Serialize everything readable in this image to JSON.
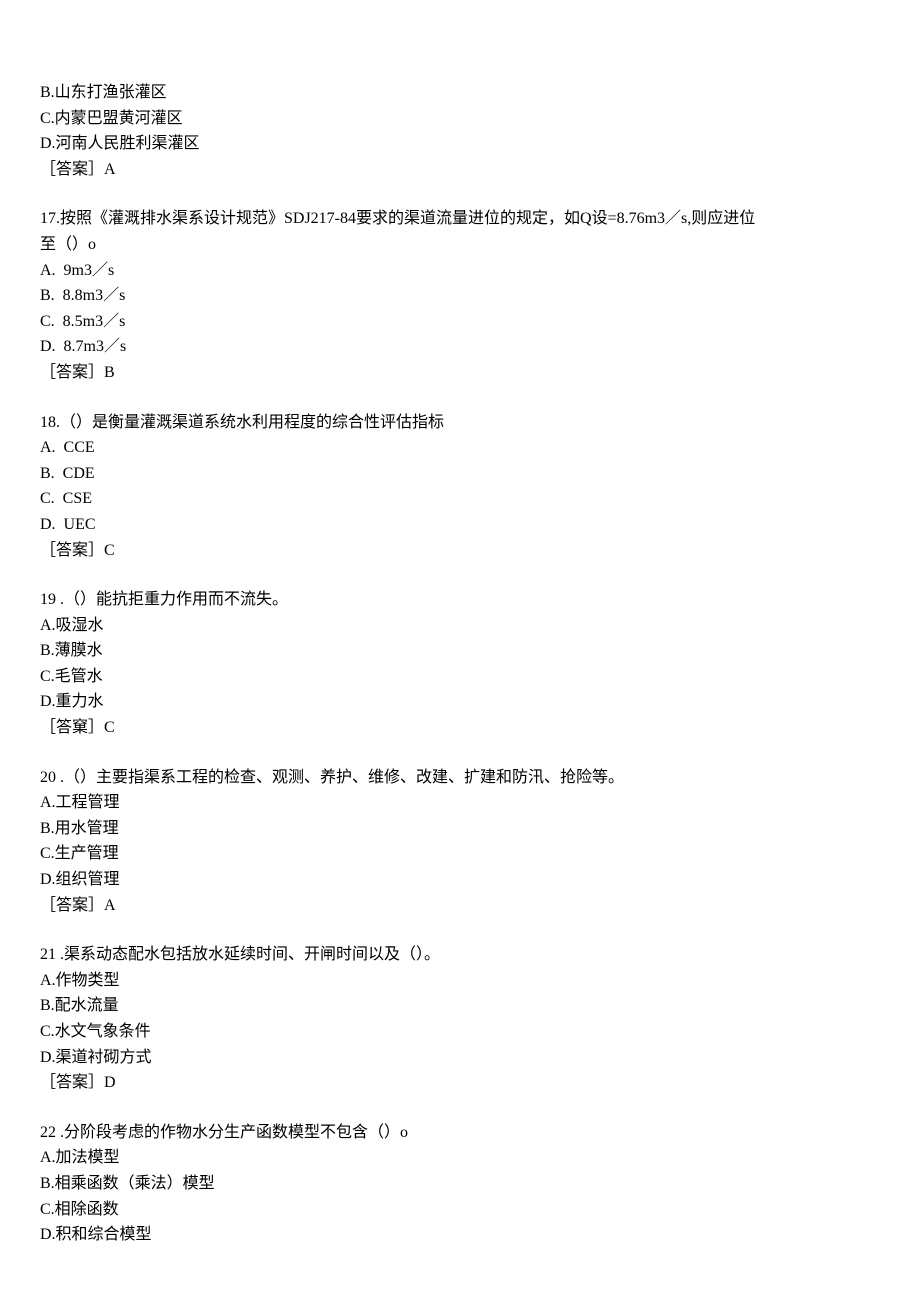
{
  "page": {
    "background_color": "#ffffff",
    "text_color": "#000000",
    "font_family": "SimSun",
    "font_size": 16,
    "line_height": 1.6
  },
  "q16_partial": {
    "option_b": "B.山东打渔张灌区",
    "option_c": "C.内蒙巴盟黄河灌区",
    "option_d": "D.河南人民胜利渠灌区",
    "answer": "［答案］A"
  },
  "q17": {
    "question_line1": "17.按照《灌溉排水渠系设计规范》SDJ217-84要求的渠道流量进位的规定，如Q设=8.76m3／s,则应进位",
    "question_line2": "至（）o",
    "option_a": "A.  9m3／s",
    "option_b": "B.  8.8m3／s",
    "option_c": "C.  8.5m3／s",
    "option_d": "D.  8.7m3／s",
    "answer": "［答案］B"
  },
  "q18": {
    "question": "18.（）是衡量灌溉渠道系统水利用程度的综合性评估指标",
    "option_a": "A.  CCE",
    "option_b": "B.  CDE",
    "option_c": "C.  CSE",
    "option_d": "D.  UEC",
    "answer": "［答案］C"
  },
  "q19": {
    "question": "19 .（）能抗拒重力作用而不流失。",
    "option_a": "A.吸湿水",
    "option_b": "B.薄膜水",
    "option_c": "C.毛管水",
    "option_d": "D.重力水",
    "answer": "［答窠］C"
  },
  "q20": {
    "question": "20 .（）主要指渠系工程的检查、观测、养护、维修、改建、扩建和防汛、抢险等。",
    "option_a": "A.工程管理",
    "option_b": "B.用水管理",
    "option_c": "C.生产管理",
    "option_d": "D.组织管理",
    "answer": "［答案］A"
  },
  "q21": {
    "question": "21 .渠系动态配水包括放水延续时间、开闸时间以及（）。",
    "option_a": "A.作物类型",
    "option_b": "B.配水流量",
    "option_c": "C.水文气象条件",
    "option_d": "D.渠道衬砌方式",
    "answer": "［答案］D"
  },
  "q22": {
    "question": "22 .分阶段考虑的作物水分生产函数模型不包含（）o",
    "option_a": "A.加法模型",
    "option_b": "B.相乘函数（乘法）模型",
    "option_c": "C.相除函数",
    "option_d": "D.积和综合模型"
  }
}
